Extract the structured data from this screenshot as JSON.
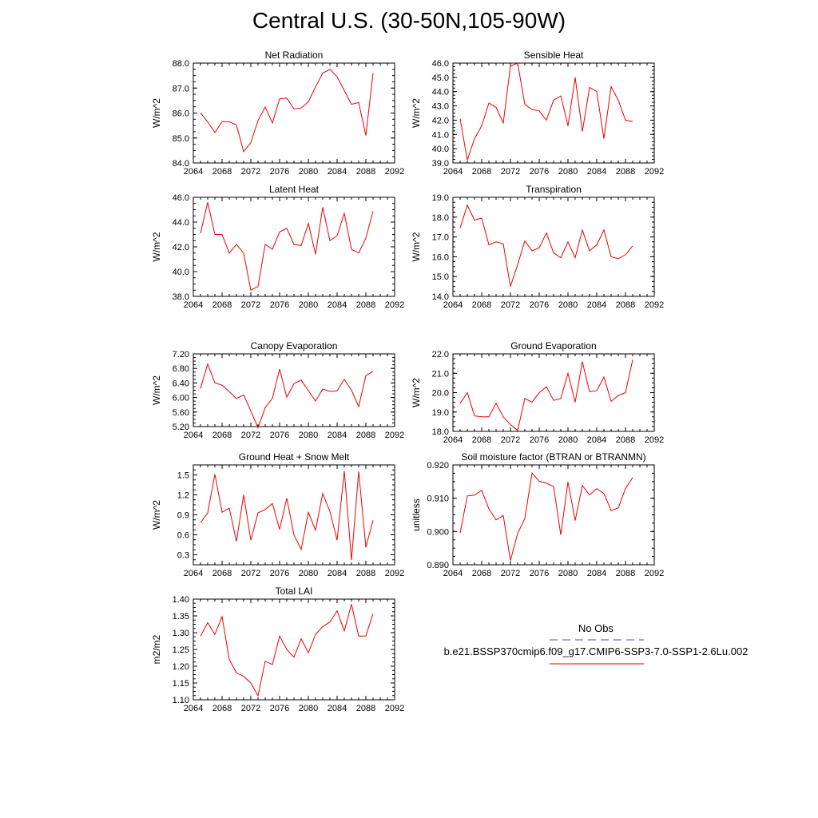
{
  "page": {
    "title": "Central U.S. (30-50N,105-90W)"
  },
  "legend": {
    "obs_label": "No Obs",
    "obs_color": "#4455aa",
    "case_label": "b.e21.BSSP370cmip6.f09_g17.CMIP6-SSP3-7.0-SSP1-2.6Lu.002",
    "case_color": "#ee0000"
  },
  "chart_data": [
    {
      "type": "line",
      "title": "Net Radiation",
      "ylabel": "W/m^2",
      "xlim": [
        2064,
        2092
      ],
      "xticks": [
        "2064",
        "2068",
        "2072",
        "2076",
        "2080",
        "2084",
        "2088",
        "2092"
      ],
      "ylim": [
        84.0,
        88.0
      ],
      "yticks": [
        "84.0",
        "85.0",
        "86.0",
        "87.0",
        "88.0"
      ],
      "series": [
        {
          "color": "#ee0000",
          "x": [
            2065,
            2066,
            2067,
            2068,
            2069,
            2070,
            2071,
            2072,
            2073,
            2074,
            2075,
            2076,
            2077,
            2078,
            2079,
            2080,
            2081,
            2082,
            2083,
            2084,
            2085,
            2086,
            2087,
            2088,
            2089
          ],
          "values": [
            86.0,
            85.65,
            85.22,
            85.65,
            85.65,
            85.52,
            84.45,
            84.82,
            85.7,
            86.24,
            85.6,
            86.57,
            86.6,
            86.17,
            86.2,
            86.45,
            87.05,
            87.6,
            87.75,
            87.45,
            86.9,
            86.35,
            86.42,
            85.1,
            87.6
          ]
        }
      ]
    },
    {
      "type": "line",
      "title": "Sensible Heat",
      "ylabel": "W/m^2",
      "xlim": [
        2064,
        2092
      ],
      "xticks": [
        "2064",
        "2068",
        "2072",
        "2076",
        "2080",
        "2084",
        "2088",
        "2092"
      ],
      "ylim": [
        39.0,
        46.0
      ],
      "yticks": [
        "39.0",
        "40.0",
        "41.0",
        "42.0",
        "43.0",
        "44.0",
        "45.0",
        "46.0"
      ],
      "series": [
        {
          "color": "#ee0000",
          "x": [
            2065,
            2066,
            2067,
            2068,
            2069,
            2070,
            2071,
            2072,
            2073,
            2074,
            2075,
            2076,
            2077,
            2078,
            2079,
            2080,
            2081,
            2082,
            2083,
            2084,
            2085,
            2086,
            2087,
            2088,
            2089
          ],
          "values": [
            42.1,
            39.2,
            40.7,
            41.6,
            43.2,
            42.9,
            41.8,
            45.8,
            46.0,
            43.1,
            42.75,
            42.65,
            42.0,
            43.4,
            43.7,
            41.6,
            45.0,
            41.2,
            44.3,
            44.0,
            40.7,
            44.35,
            43.4,
            42.0,
            41.9
          ]
        }
      ]
    },
    {
      "type": "line",
      "title": "Latent Heat",
      "ylabel": "W/m^2",
      "xlim": [
        2064,
        2092
      ],
      "xticks": [
        "2064",
        "2068",
        "2072",
        "2076",
        "2080",
        "2084",
        "2088",
        "2092"
      ],
      "ylim": [
        38.0,
        46.0
      ],
      "yticks": [
        "38.0",
        "40.0",
        "42.0",
        "44.0",
        "46.0"
      ],
      "series": [
        {
          "color": "#ee0000",
          "x": [
            2065,
            2066,
            2067,
            2068,
            2069,
            2070,
            2071,
            2072,
            2073,
            2074,
            2075,
            2076,
            2077,
            2078,
            2079,
            2080,
            2081,
            2082,
            2083,
            2084,
            2085,
            2086,
            2087,
            2088,
            2089
          ],
          "values": [
            43.1,
            45.6,
            43.0,
            43.0,
            41.5,
            42.2,
            41.5,
            38.5,
            38.8,
            42.2,
            41.8,
            43.2,
            43.5,
            42.2,
            42.1,
            43.9,
            41.4,
            45.2,
            42.5,
            42.9,
            44.7,
            41.8,
            41.5,
            42.7,
            44.9
          ]
        }
      ]
    },
    {
      "type": "line",
      "title": "Transpiration",
      "ylabel": "W/m^2",
      "xlim": [
        2064,
        2092
      ],
      "xticks": [
        "2064",
        "2068",
        "2072",
        "2076",
        "2080",
        "2084",
        "2088",
        "2092"
      ],
      "ylim": [
        14.0,
        19.0
      ],
      "yticks": [
        "14.0",
        "15.0",
        "16.0",
        "17.0",
        "18.0",
        "19.0"
      ],
      "series": [
        {
          "color": "#ee0000",
          "x": [
            2065,
            2066,
            2067,
            2068,
            2069,
            2070,
            2071,
            2072,
            2073,
            2074,
            2075,
            2076,
            2077,
            2078,
            2079,
            2080,
            2081,
            2082,
            2083,
            2084,
            2085,
            2086,
            2087,
            2088,
            2089
          ],
          "values": [
            17.45,
            18.6,
            17.85,
            17.95,
            16.6,
            16.75,
            16.65,
            14.5,
            15.6,
            16.8,
            16.3,
            16.45,
            17.2,
            16.2,
            15.95,
            16.75,
            15.95,
            17.35,
            16.3,
            16.6,
            17.35,
            16.0,
            15.9,
            16.1,
            16.55
          ]
        }
      ]
    },
    {
      "type": "line",
      "title": "Canopy Evaporation",
      "ylabel": "W/m^2",
      "xlim": [
        2064,
        2092
      ],
      "xticks": [
        "2064",
        "2068",
        "2072",
        "2076",
        "2080",
        "2084",
        "2088",
        "2092"
      ],
      "ylim": [
        5.2,
        7.2
      ],
      "yticks": [
        "5.20",
        "5.60",
        "6.00",
        "6.40",
        "6.80",
        "7.20"
      ],
      "series": [
        {
          "color": "#ee0000",
          "x": [
            2065,
            2066,
            2067,
            2068,
            2069,
            2070,
            2071,
            2072,
            2073,
            2074,
            2075,
            2076,
            2077,
            2078,
            2079,
            2080,
            2081,
            2082,
            2083,
            2084,
            2085,
            2086,
            2087,
            2088,
            2089
          ],
          "values": [
            6.25,
            6.92,
            6.4,
            6.34,
            6.16,
            5.97,
            6.07,
            5.63,
            5.17,
            5.72,
            5.98,
            6.78,
            6.01,
            6.38,
            6.48,
            6.19,
            5.9,
            6.23,
            6.17,
            6.18,
            6.5,
            6.2,
            5.75,
            6.6,
            6.72
          ]
        }
      ]
    },
    {
      "type": "line",
      "title": "Ground Evaporation",
      "ylabel": "W/m^2",
      "xlim": [
        2064,
        2092
      ],
      "xticks": [
        "2064",
        "2068",
        "2072",
        "2076",
        "2080",
        "2084",
        "2088",
        "2092"
      ],
      "ylim": [
        18.0,
        22.0
      ],
      "yticks": [
        "18.0",
        "19.0",
        "20.0",
        "21.0",
        "22.0"
      ],
      "series": [
        {
          "color": "#ee0000",
          "x": [
            2065,
            2066,
            2067,
            2068,
            2069,
            2070,
            2071,
            2072,
            2073,
            2074,
            2075,
            2076,
            2077,
            2078,
            2079,
            2080,
            2081,
            2082,
            2083,
            2084,
            2085,
            2086,
            2087,
            2088,
            2089
          ],
          "values": [
            19.45,
            20.0,
            18.8,
            18.75,
            18.75,
            19.45,
            18.75,
            18.35,
            18.05,
            19.7,
            19.5,
            20.0,
            20.3,
            19.6,
            19.7,
            21.0,
            19.5,
            21.6,
            20.05,
            20.1,
            20.8,
            19.55,
            19.85,
            20.0,
            21.7
          ]
        }
      ]
    },
    {
      "type": "line",
      "title": "Ground Heat + Snow Melt",
      "ylabel": "W/m^2",
      "xlim": [
        2064,
        2092
      ],
      "xticks": [
        "2064",
        "2068",
        "2072",
        "2076",
        "2080",
        "2084",
        "2088",
        "2092"
      ],
      "ylim": [
        0.15,
        1.65
      ],
      "yticks": [
        "0.3",
        "0.6",
        "0.9",
        "1.2",
        "1.5"
      ],
      "series": [
        {
          "color": "#ee0000",
          "x": [
            2065,
            2066,
            2067,
            2068,
            2069,
            2070,
            2071,
            2072,
            2073,
            2074,
            2075,
            2076,
            2077,
            2078,
            2079,
            2080,
            2081,
            2082,
            2083,
            2084,
            2085,
            2086,
            2087,
            2088,
            2089
          ],
          "values": [
            0.78,
            0.93,
            1.51,
            0.94,
            1.0,
            0.5,
            1.2,
            0.52,
            0.93,
            0.98,
            1.07,
            0.68,
            1.15,
            0.6,
            0.38,
            0.94,
            0.67,
            1.22,
            0.95,
            0.52,
            1.56,
            0.22,
            1.55,
            0.41,
            0.82
          ]
        }
      ]
    },
    {
      "type": "line",
      "title": "Soil moisture factor (BTRAN or BTRANMN)",
      "ylabel": "unitless",
      "xlim": [
        2064,
        2092
      ],
      "xticks": [
        "2064",
        "2068",
        "2072",
        "2076",
        "2080",
        "2084",
        "2088",
        "2092"
      ],
      "ylim": [
        0.89,
        0.92
      ],
      "yticks": [
        "0.890",
        "0.900",
        "0.910",
        "0.920"
      ],
      "series": [
        {
          "color": "#ee0000",
          "x": [
            2065,
            2066,
            2067,
            2068,
            2069,
            2070,
            2071,
            2072,
            2073,
            2074,
            2075,
            2076,
            2077,
            2078,
            2079,
            2080,
            2081,
            2082,
            2083,
            2084,
            2085,
            2086,
            2087,
            2088,
            2089
          ],
          "values": [
            0.8995,
            0.9107,
            0.9109,
            0.9124,
            0.9068,
            0.9035,
            0.9048,
            0.8913,
            0.8994,
            0.9039,
            0.9176,
            0.9151,
            0.9145,
            0.9135,
            0.899,
            0.9149,
            0.9033,
            0.9138,
            0.911,
            0.9129,
            0.9114,
            0.9063,
            0.9071,
            0.9129,
            0.9162
          ]
        }
      ]
    },
    {
      "type": "line",
      "title": "Total LAI",
      "ylabel": "m2/m2",
      "xlim": [
        2064,
        2092
      ],
      "xticks": [
        "2064",
        "2068",
        "2072",
        "2076",
        "2080",
        "2084",
        "2088",
        "2092"
      ],
      "ylim": [
        1.1,
        1.4
      ],
      "yticks": [
        "1.10",
        "1.15",
        "1.20",
        "1.25",
        "1.30",
        "1.35",
        "1.40"
      ],
      "series": [
        {
          "color": "#ee0000",
          "x": [
            2065,
            2066,
            2067,
            2068,
            2069,
            2070,
            2071,
            2072,
            2073,
            2074,
            2075,
            2076,
            2077,
            2078,
            2079,
            2080,
            2081,
            2082,
            2083,
            2084,
            2085,
            2086,
            2087,
            2088,
            2089
          ],
          "values": [
            1.29,
            1.33,
            1.295,
            1.348,
            1.22,
            1.18,
            1.17,
            1.15,
            1.112,
            1.215,
            1.205,
            1.29,
            1.25,
            1.227,
            1.282,
            1.24,
            1.295,
            1.318,
            1.332,
            1.365,
            1.305,
            1.385,
            1.29,
            1.29,
            1.357
          ]
        }
      ]
    }
  ]
}
